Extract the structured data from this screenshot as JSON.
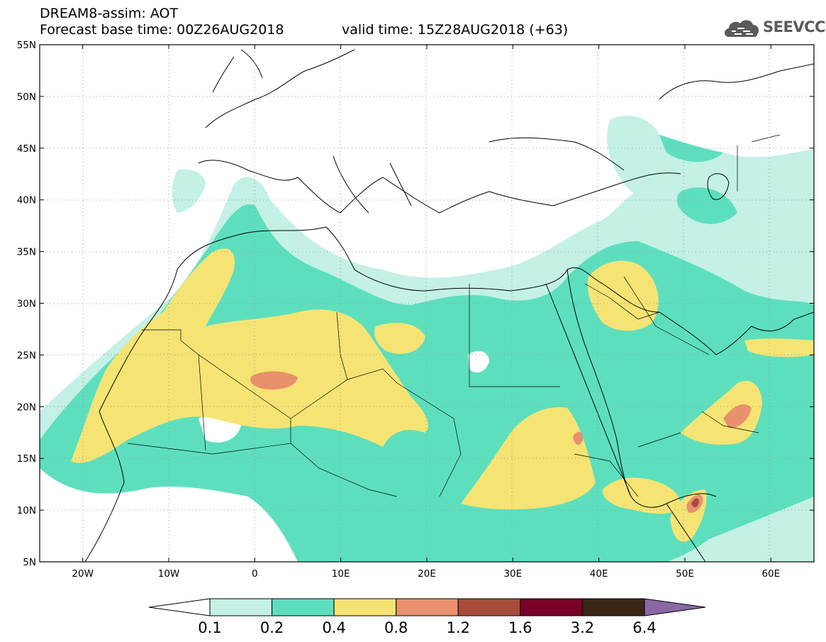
{
  "header": {
    "line1": "DREAM8-assim: AOT",
    "line2": "Forecast base time: 00Z26AUG2018",
    "line3": "valid time: 15Z28AUG2018 (+63)",
    "logo_text": "SEEVCCC"
  },
  "axes": {
    "lat_labels": [
      "55N",
      "50N",
      "45N",
      "40N",
      "35N",
      "30N",
      "25N",
      "20N",
      "15N",
      "10N",
      "5N"
    ],
    "lon_labels": [
      "20W",
      "10W",
      "0",
      "10E",
      "20E",
      "30E",
      "40E",
      "50E",
      "60E"
    ],
    "lat_range": [
      5,
      55
    ],
    "lon_range": [
      -25,
      65
    ],
    "grid": "dotted"
  },
  "colorbar": {
    "labels": [
      "0.1",
      "0.2",
      "0.4",
      "0.8",
      "1.2",
      "1.6",
      "3.2",
      "6.4"
    ],
    "colors": [
      "#ffffff",
      "#c4f0e6",
      "#5ddfbd",
      "#f5e474",
      "#e9906c",
      "#a84d3b",
      "#7a0027",
      "#3a2616",
      "#8a68a5"
    ]
  }
}
